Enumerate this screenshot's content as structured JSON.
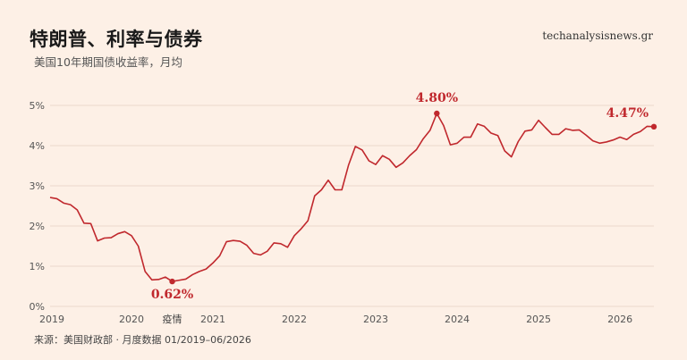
{
  "header": {
    "title": "特朗普、利率与债券",
    "subtitle": "美国10年期国债收益率，月均",
    "site": "techanalysisnews.gr"
  },
  "footer": {
    "source": "来源：美国财政部 · 月度数据 01/2019–06/2026"
  },
  "colors": {
    "background": "#fdf0e6",
    "line": "#c0282d",
    "grid": "#ead9cc"
  },
  "chart_data": {
    "type": "line",
    "ylim": [
      0,
      5
    ],
    "yticks": [
      0,
      1,
      2,
      3,
      4,
      5
    ],
    "ytick_labels": [
      "0%",
      "1%",
      "2%",
      "3%",
      "4%",
      "5%"
    ],
    "xticks": [
      2019,
      2020,
      2021,
      2022,
      2023,
      2024,
      2025,
      2026
    ],
    "xtick_labels": [
      "2019",
      "2020",
      "2021",
      "2022",
      "2023",
      "2024",
      "2025",
      "2026"
    ],
    "x_range": [
      "2019-01",
      "2026-06"
    ],
    "grid": true,
    "series": [
      {
        "values": [
          2.71,
          2.68,
          2.57,
          2.53,
          2.4,
          2.07,
          2.06,
          1.63,
          1.7,
          1.71,
          1.81,
          1.86,
          1.76,
          1.5,
          0.87,
          0.66,
          0.67,
          0.73,
          0.62,
          0.65,
          0.68,
          0.79,
          0.87,
          0.93,
          1.08,
          1.26,
          1.61,
          1.64,
          1.62,
          1.52,
          1.32,
          1.28,
          1.37,
          1.58,
          1.56,
          1.47,
          1.76,
          1.93,
          2.13,
          2.75,
          2.9,
          3.14,
          2.9,
          2.9,
          3.52,
          3.98,
          3.89,
          3.62,
          3.53,
          3.75,
          3.66,
          3.46,
          3.57,
          3.75,
          3.9,
          4.17,
          4.38,
          4.8,
          4.5,
          4.02,
          4.06,
          4.21,
          4.21,
          4.54,
          4.48,
          4.31,
          4.25,
          3.87,
          3.72,
          4.1,
          4.36,
          4.39,
          4.63,
          4.45,
          4.28,
          4.28,
          4.42,
          4.38,
          4.39,
          4.26,
          4.12,
          4.06,
          4.09,
          4.14,
          4.21,
          4.15,
          4.28,
          4.35,
          4.48,
          4.47
        ]
      }
    ],
    "annotations": [
      {
        "month": "2020-07",
        "value": 0.62,
        "label": "0.62%",
        "note": "疫情"
      },
      {
        "month": "2023-10",
        "value": 4.8,
        "label": "4.80%"
      },
      {
        "month": "2026-06",
        "value": 4.47,
        "label": "4.47%"
      }
    ]
  }
}
